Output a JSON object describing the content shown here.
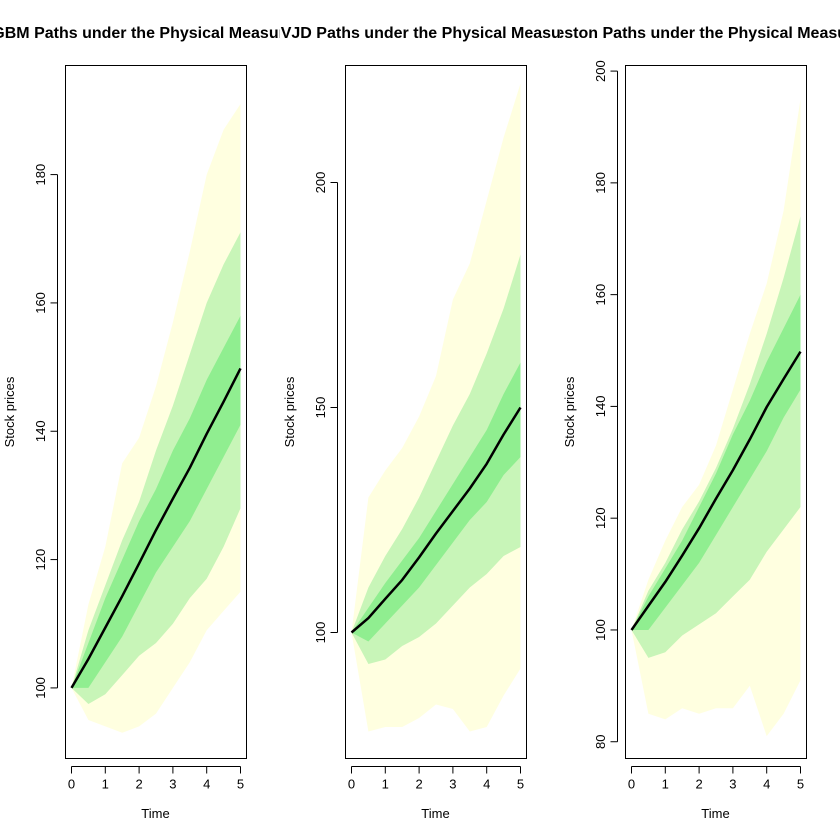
{
  "colors": {
    "band_outer": "#ffffe0",
    "band_mid": "#c8f5b8",
    "band_inner": "#90ee90",
    "median": "#000000",
    "frame": "#000000"
  },
  "chart_data": [
    {
      "type": "area",
      "title": "GBM Paths under the Physical Measure",
      "xlabel": "Time",
      "ylabel": "Stock prices",
      "xlim": [
        0,
        5
      ],
      "ylim": [
        89,
        197
      ],
      "xticks": [
        0,
        1,
        2,
        3,
        4,
        5
      ],
      "yticks": [
        100,
        120,
        140,
        160,
        180
      ],
      "x": [
        0,
        0.5,
        1,
        1.5,
        2,
        2.5,
        3,
        3.5,
        4,
        4.5,
        5
      ],
      "median": [
        100,
        104.5,
        109.4,
        114.3,
        119.4,
        124.6,
        129.5,
        134.3,
        139.6,
        144.6,
        149.8
      ],
      "bands": [
        {
          "name": "outer",
          "lower": [
            100,
            95,
            94,
            93,
            94,
            96,
            100,
            104,
            109,
            112,
            115
          ],
          "upper": [
            100,
            113,
            122,
            135,
            139,
            147,
            157,
            168,
            180,
            187,
            191
          ]
        },
        {
          "name": "mid",
          "lower": [
            100,
            97.5,
            99,
            102,
            105,
            107,
            110,
            114,
            117,
            122,
            128
          ],
          "upper": [
            100,
            109,
            116,
            123,
            129,
            137,
            144,
            152,
            160,
            166,
            171
          ]
        },
        {
          "name": "inner",
          "lower": [
            100,
            100,
            104,
            108,
            113,
            118,
            122,
            126,
            131,
            136,
            141
          ],
          "upper": [
            100,
            107,
            114,
            120,
            126,
            131,
            137,
            142,
            148,
            153,
            158
          ]
        }
      ]
    },
    {
      "type": "area",
      "title": "SVJD Paths under the Physical Measure",
      "xlabel": "Time",
      "ylabel": "Stock prices",
      "xlim": [
        0,
        5
      ],
      "ylim": [
        72,
        226
      ],
      "xticks": [
        0,
        1,
        2,
        3,
        4,
        5
      ],
      "yticks": [
        100,
        150,
        200
      ],
      "x": [
        0,
        0.5,
        1,
        1.5,
        2,
        2.5,
        3,
        3.5,
        4,
        4.5,
        5
      ],
      "median": [
        100,
        103.2,
        107.5,
        111.7,
        116.7,
        122,
        127,
        132,
        137.5,
        144,
        150
      ],
      "bands": [
        {
          "name": "outer",
          "lower": [
            100,
            78,
            79,
            79,
            81,
            84,
            83,
            78,
            79,
            86,
            92
          ],
          "upper": [
            100,
            130,
            136,
            141,
            148,
            157,
            174,
            182,
            196,
            210,
            222
          ]
        },
        {
          "name": "mid",
          "lower": [
            100,
            93,
            94,
            97,
            99,
            102,
            106,
            110,
            113,
            117,
            119
          ],
          "upper": [
            100,
            110,
            117,
            123,
            130,
            138,
            146,
            153,
            162,
            172,
            184
          ]
        },
        {
          "name": "inner",
          "lower": [
            100,
            98,
            102,
            106,
            110,
            115,
            120,
            125,
            129,
            135,
            139
          ],
          "upper": [
            100,
            105.5,
            111,
            116,
            121,
            127,
            133,
            139,
            145,
            153,
            160
          ]
        }
      ]
    },
    {
      "type": "area",
      "title": "Heston Paths under the Physical Measure",
      "xlabel": "Time",
      "ylabel": "Stock prices",
      "xlim": [
        0,
        5
      ],
      "ylim": [
        77,
        201
      ],
      "xticks": [
        0,
        1,
        2,
        3,
        4,
        5
      ],
      "yticks": [
        80,
        100,
        120,
        140,
        160,
        180,
        200
      ],
      "x": [
        0,
        0.5,
        1,
        1.5,
        2,
        2.5,
        3,
        3.5,
        4,
        4.5,
        5
      ],
      "median": [
        100,
        104.3,
        108.6,
        113.3,
        118.2,
        123.5,
        128.6,
        134.1,
        139.9,
        144.9,
        149.8
      ],
      "bands": [
        {
          "name": "outer",
          "lower": [
            100,
            85,
            84,
            86,
            85,
            86,
            86,
            90,
            81,
            85,
            91
          ],
          "upper": [
            100,
            109,
            116,
            122,
            126,
            133,
            143,
            153,
            162,
            175,
            195
          ]
        },
        {
          "name": "mid",
          "lower": [
            100,
            95,
            96,
            99,
            101,
            103,
            106,
            109,
            114,
            118,
            122
          ],
          "upper": [
            100,
            107,
            112,
            118,
            123,
            129,
            136,
            144,
            153,
            163,
            174
          ]
        },
        {
          "name": "inner",
          "lower": [
            100,
            100,
            104,
            108,
            112,
            117,
            122,
            127,
            132,
            138,
            143
          ],
          "upper": [
            100,
            106,
            111,
            116,
            122,
            128,
            135,
            141,
            148,
            154,
            160
          ]
        }
      ]
    }
  ]
}
